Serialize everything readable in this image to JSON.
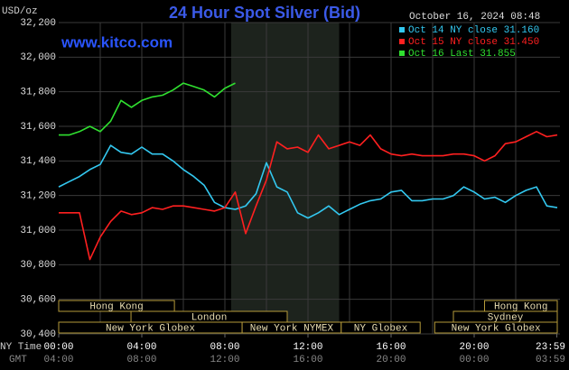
{
  "chart_data": {
    "type": "line",
    "title": "24 Hour Spot Silver (Bid)",
    "unit_label": "USD/oz",
    "date_label": "October 16, 2024 08:48",
    "site": "www.kitco.com",
    "x_row_labels": [
      "NY Time",
      "GMT"
    ],
    "x": [
      0,
      0.5,
      1,
      1.5,
      2,
      2.5,
      3,
      3.5,
      4,
      4.5,
      5,
      5.5,
      6,
      6.5,
      7,
      7.5,
      8,
      8.5,
      9,
      9.5,
      10,
      10.5,
      11,
      11.5,
      12,
      12.5,
      13,
      13.5,
      14,
      14.5,
      15,
      15.5,
      16,
      16.5,
      17,
      17.5,
      18,
      18.5,
      19,
      19.5,
      20,
      20.5,
      21,
      21.5,
      22,
      22.5,
      23,
      23.5,
      24
    ],
    "xlim": [
      0,
      24
    ],
    "xticks": [
      {
        "value": 0,
        "label": "00:00"
      },
      {
        "value": 4,
        "label": "04:00"
      },
      {
        "value": 8,
        "label": "08:00"
      },
      {
        "value": 12,
        "label": "12:00"
      },
      {
        "value": 16,
        "label": "16:00"
      },
      {
        "value": 20,
        "label": "20:00"
      },
      {
        "value": 23.98,
        "label": "23:59"
      }
    ],
    "gmt_labels": [
      "04:00",
      "08:00",
      "12:00",
      "16:00",
      "20:00",
      "00:00",
      "03:59"
    ],
    "xgrid": [
      2,
      4,
      6,
      8,
      10,
      12,
      14,
      16,
      18,
      20,
      22
    ],
    "shade": [
      8.3,
      13.5
    ],
    "ylim": [
      30.4,
      32.2
    ],
    "yticks": [
      {
        "value": 30.4,
        "label": "30,400"
      },
      {
        "value": 30.6,
        "label": "30,600"
      },
      {
        "value": 30.8,
        "label": "30,800"
      },
      {
        "value": 31.0,
        "label": "31,000"
      },
      {
        "value": 31.2,
        "label": "31,200"
      },
      {
        "value": 31.4,
        "label": "31,400"
      },
      {
        "value": 31.6,
        "label": "31,600"
      },
      {
        "value": 31.8,
        "label": "31,800"
      },
      {
        "value": 32.0,
        "label": "32,000"
      },
      {
        "value": 32.2,
        "label": "32,200"
      }
    ],
    "grid": true,
    "series": [
      {
        "name": "Oct 14 NY close 31.160",
        "color": "#33c8f0",
        "values": [
          31.25,
          31.28,
          31.31,
          31.35,
          31.38,
          31.49,
          31.45,
          31.44,
          31.48,
          31.44,
          31.44,
          31.4,
          31.35,
          31.31,
          31.26,
          31.16,
          31.13,
          31.12,
          31.14,
          31.21,
          31.39,
          31.25,
          31.22,
          31.1,
          31.07,
          31.1,
          31.14,
          31.09,
          31.12,
          31.15,
          31.17,
          31.18,
          31.22,
          31.23,
          31.17,
          31.17,
          31.18,
          31.18,
          31.2,
          31.25,
          31.22,
          31.18,
          31.19,
          31.16,
          31.2,
          31.23,
          31.25,
          31.14,
          31.13
        ]
      },
      {
        "name": "Oct 15 NY close 31.450",
        "color": "#ff2020",
        "values": [
          31.1,
          31.1,
          31.1,
          30.83,
          30.96,
          31.05,
          31.11,
          31.09,
          31.1,
          31.13,
          31.12,
          31.14,
          31.14,
          31.13,
          31.12,
          31.11,
          31.13,
          31.22,
          30.98,
          31.14,
          31.29,
          31.51,
          31.47,
          31.48,
          31.45,
          31.55,
          31.47,
          31.49,
          31.51,
          31.49,
          31.55,
          31.47,
          31.44,
          31.43,
          31.44,
          31.43,
          31.43,
          31.43,
          31.44,
          31.44,
          31.43,
          31.4,
          31.43,
          31.5,
          31.51,
          31.54,
          31.57,
          31.54,
          31.55
        ]
      },
      {
        "name": "Oct 16 Last 31.855",
        "color": "#30e030",
        "values": [
          31.55,
          31.55,
          31.57,
          31.6,
          31.57,
          31.63,
          31.75,
          31.71,
          31.75,
          31.77,
          31.78,
          31.81,
          31.85,
          31.83,
          31.81,
          31.77,
          31.82,
          31.85,
          null,
          null,
          null,
          null,
          null,
          null,
          null,
          null,
          null,
          null,
          null,
          null,
          null,
          null,
          null,
          null,
          null,
          null,
          null,
          null,
          null,
          null,
          null,
          null,
          null,
          null,
          null,
          null,
          null,
          null,
          null
        ]
      }
    ],
    "sessions": [
      {
        "name": "Hong Kong",
        "start": 0,
        "end": 5.57,
        "row": 0
      },
      {
        "name": "Hong Kong",
        "start": 20.5,
        "end": 24,
        "row": 0
      },
      {
        "name": "London",
        "start": 3.48,
        "end": 11,
        "row": 1
      },
      {
        "name": "Sydney",
        "start": 19,
        "end": 24,
        "row": 1
      },
      {
        "name": "New York Globex",
        "start": 0,
        "end": 8.83,
        "row": 2
      },
      {
        "name": "New York NYMEX",
        "start": 8.83,
        "end": 13.6,
        "row": 2
      },
      {
        "name": "NY Globex",
        "start": 13.6,
        "end": 17.4,
        "row": 2
      },
      {
        "name": "New York Globex",
        "start": 18.1,
        "end": 24,
        "row": 2
      }
    ]
  }
}
